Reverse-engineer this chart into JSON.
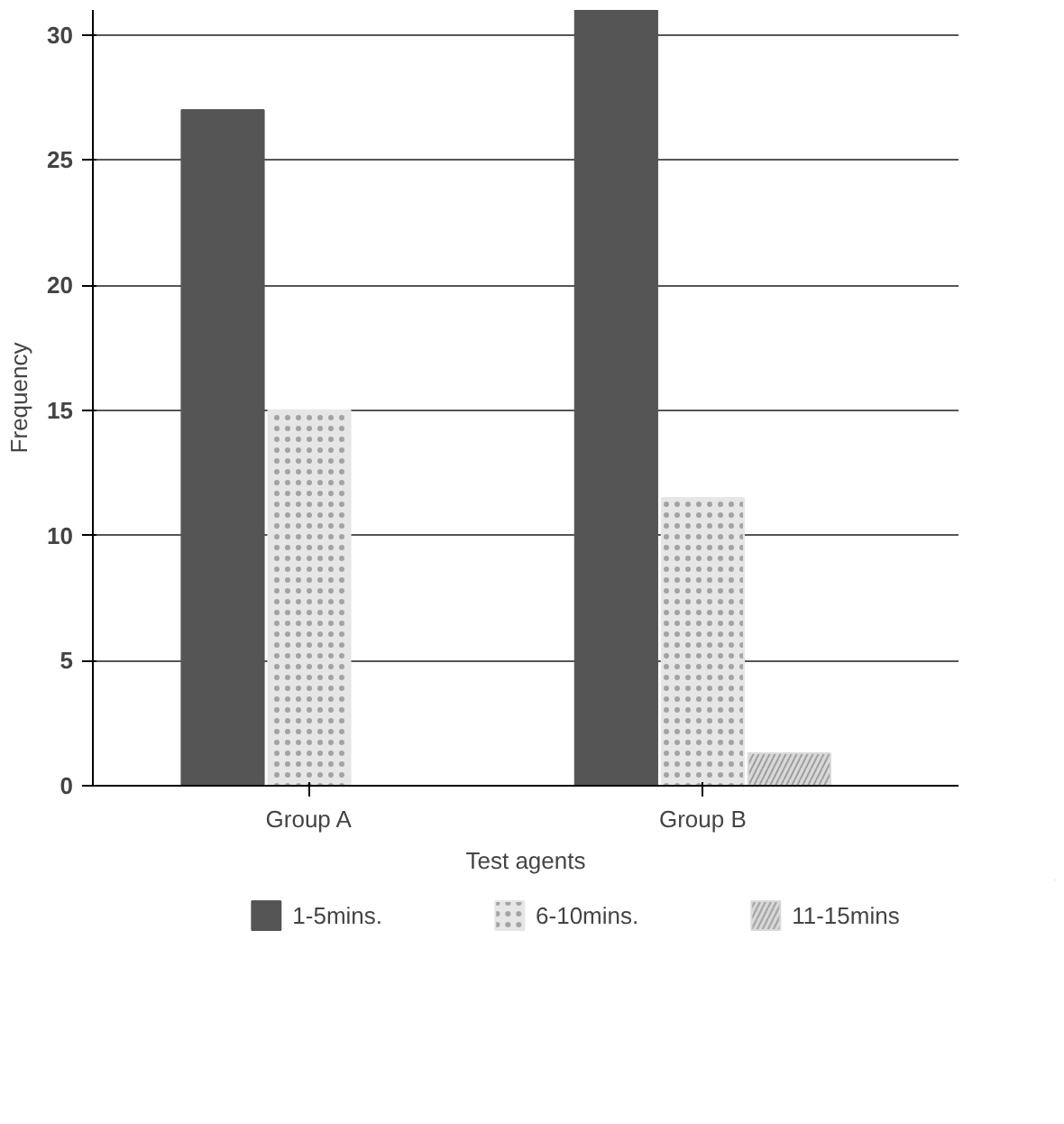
{
  "chart_data": {
    "type": "bar",
    "xlabel": "Test agents",
    "ylabel": "Frequency",
    "categories": [
      "Group A",
      "Group B"
    ],
    "series": [
      {
        "name": "1-5mins.",
        "color": "#555555",
        "values": [
          27,
          31
        ]
      },
      {
        "name": "6-10mins.",
        "color": "#e6e6e6",
        "values": [
          15,
          11.5
        ]
      },
      {
        "name": "11-15mins",
        "color": "#d9d9d9",
        "values": [
          0,
          1.3
        ]
      }
    ],
    "ylim": [
      0,
      31
    ],
    "yticks": [
      0,
      5,
      10,
      15,
      20,
      25,
      30
    ],
    "grid": "y",
    "legend": "bottom"
  }
}
